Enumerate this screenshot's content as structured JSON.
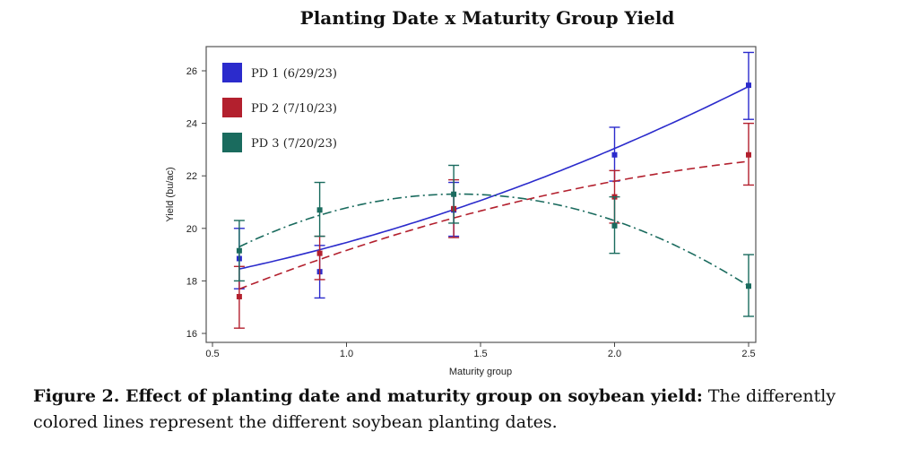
{
  "chart_data": {
    "type": "line",
    "title": "Planting Date x Maturity Group Yield",
    "xlabel": "Maturity group",
    "ylabel": "Yield (bu/ac)",
    "xlim": [
      0.5,
      2.5
    ],
    "ylim": [
      16,
      26
    ],
    "xticks": [
      "0.5",
      "1.0",
      "1.5",
      "2.0",
      "2.5"
    ],
    "xtick_values": [
      0.5,
      1.0,
      1.5,
      2.0,
      2.5
    ],
    "yticks": [
      "16",
      "18",
      "20",
      "22",
      "24",
      "26"
    ],
    "ytick_values": [
      16,
      18,
      20,
      22,
      24,
      26
    ],
    "grid": false,
    "legend_position": "top-left",
    "x": [
      0.6,
      0.9,
      1.4,
      2.0,
      2.5
    ],
    "series": [
      {
        "name": "PD 1 (6/29/23)",
        "color": "#2b2bcc",
        "dash": "solid",
        "values": [
          18.85,
          18.35,
          20.7,
          22.8,
          25.45
        ],
        "lower": [
          17.7,
          17.35,
          19.7,
          21.8,
          24.15
        ],
        "upper": [
          20.0,
          19.35,
          21.75,
          23.85,
          26.7
        ],
        "fit": [
          18.45,
          19.2,
          20.7,
          23.05,
          25.4
        ]
      },
      {
        "name": "PD 2 (7/10/23)",
        "color": "#b3202e",
        "dash": "dashed",
        "values": [
          17.4,
          19.05,
          20.75,
          21.2,
          22.8
        ],
        "lower": [
          16.2,
          18.05,
          19.65,
          20.2,
          21.65
        ],
        "upper": [
          18.55,
          19.7,
          21.85,
          22.2,
          24.0
        ],
        "fit": [
          17.7,
          18.8,
          20.4,
          21.8,
          22.55
        ]
      },
      {
        "name": "PD 3 (7/20/23)",
        "color": "#1a6b5e",
        "dash": "dashdot",
        "values": [
          19.15,
          20.7,
          21.3,
          20.1,
          17.8
        ],
        "lower": [
          18.0,
          19.7,
          20.2,
          19.05,
          16.65
        ],
        "upper": [
          20.3,
          21.75,
          22.4,
          21.2,
          19.0
        ],
        "fit": [
          19.3,
          20.5,
          21.3,
          20.3,
          17.8
        ]
      }
    ]
  },
  "caption": {
    "bold": "Figure 2. Effect of planting date and maturity group on soybean yield:",
    "text": " The differently colored lines represent the different soybean planting dates."
  }
}
